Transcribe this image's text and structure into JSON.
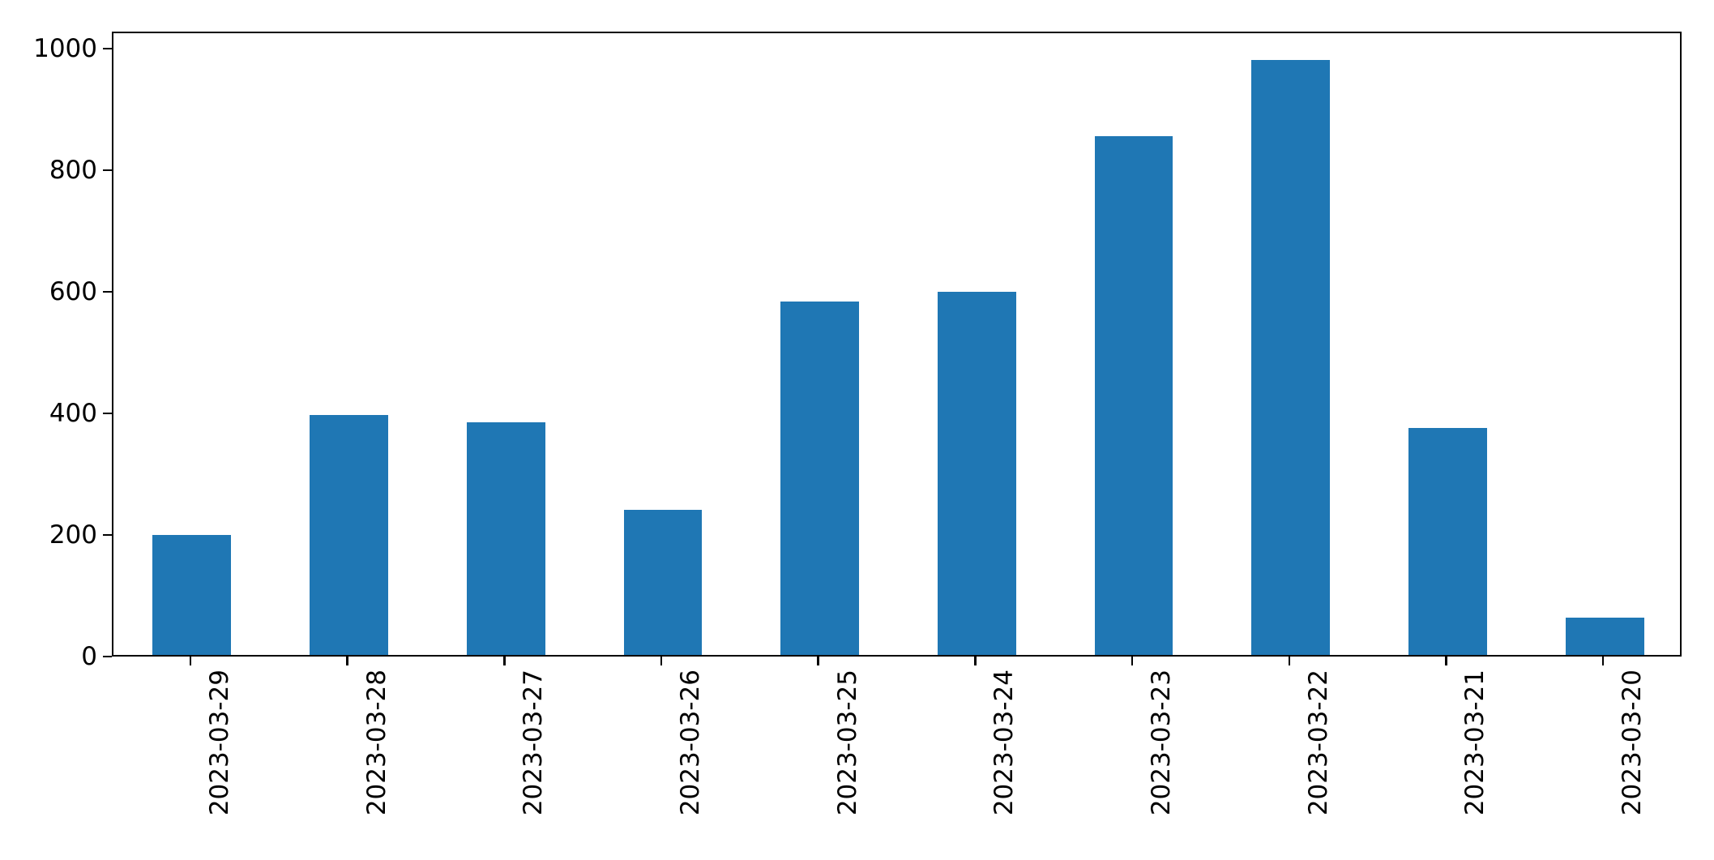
{
  "chart_data": {
    "type": "bar",
    "title": "",
    "xlabel": "",
    "ylabel": "",
    "categories": [
      "2023-03-29",
      "2023-03-28",
      "2023-03-27",
      "2023-03-26",
      "2023-03-25",
      "2023-03-24",
      "2023-03-23",
      "2023-03-22",
      "2023-03-21",
      "2023-03-20"
    ],
    "values": [
      197,
      395,
      383,
      239,
      582,
      597,
      854,
      979,
      374,
      61
    ],
    "yticks": [
      0,
      200,
      400,
      600,
      800,
      1000
    ],
    "ylim": [
      0,
      1028
    ],
    "x_tick_rotation": 90,
    "grid": false,
    "legend": false,
    "bar_color": "#1f77b4",
    "spine_color": "#000000",
    "tick_label_color": "#000000",
    "background_color": "#ffffff"
  }
}
